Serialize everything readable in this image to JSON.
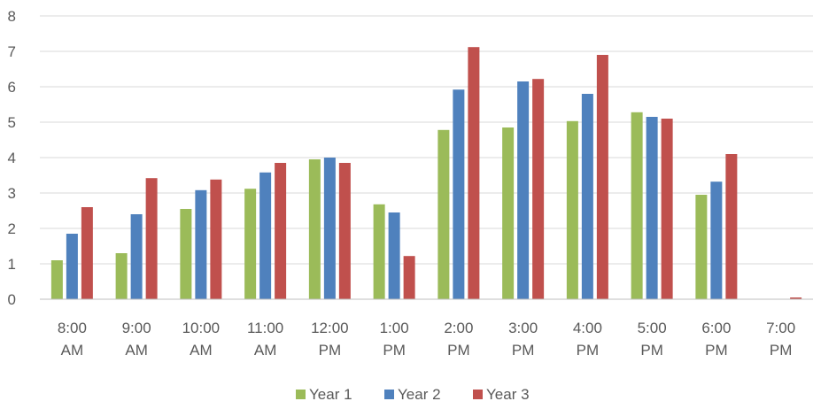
{
  "chart_data": {
    "type": "bar",
    "categories": [
      [
        "8:00",
        "AM"
      ],
      [
        "9:00",
        "AM"
      ],
      [
        "10:00",
        "AM"
      ],
      [
        "11:00",
        "AM"
      ],
      [
        "12:00",
        "PM"
      ],
      [
        "1:00",
        "PM"
      ],
      [
        "2:00",
        "PM"
      ],
      [
        "3:00",
        "PM"
      ],
      [
        "4:00",
        "PM"
      ],
      [
        "5:00",
        "PM"
      ],
      [
        "6:00",
        "PM"
      ],
      [
        "7:00",
        "PM"
      ]
    ],
    "series": [
      {
        "name": "Year 1",
        "color": "#9bbb59",
        "values": [
          1.1,
          1.3,
          2.55,
          3.12,
          3.95,
          2.68,
          4.78,
          4.85,
          5.03,
          5.28,
          2.95,
          0
        ]
      },
      {
        "name": "Year 2",
        "color": "#4f81bd",
        "values": [
          1.85,
          2.4,
          3.08,
          3.58,
          4.0,
          2.45,
          5.92,
          6.15,
          5.8,
          5.15,
          3.32,
          0
        ]
      },
      {
        "name": "Year 3",
        "color": "#c0504d",
        "values": [
          2.6,
          3.42,
          3.38,
          3.85,
          3.85,
          1.22,
          7.12,
          6.22,
          6.9,
          5.1,
          4.1,
          0.05
        ]
      }
    ],
    "yticks": [
      0,
      1,
      2,
      3,
      4,
      5,
      6,
      7,
      8
    ],
    "ylim": [
      0,
      8
    ],
    "grid": true,
    "legend": "bottom-center",
    "gridColor": "#d9d9d9",
    "axisColor": "#bfbfbf"
  }
}
